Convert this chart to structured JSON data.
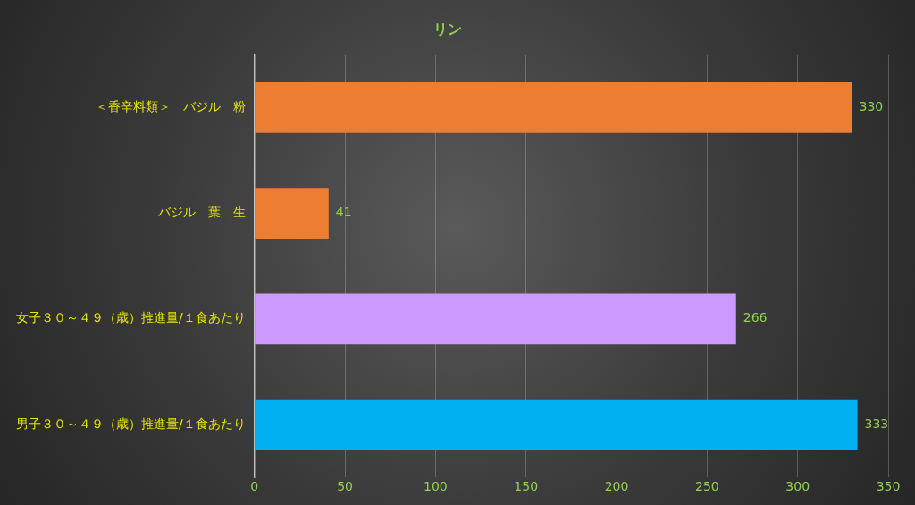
{
  "chart_data": {
    "type": "bar",
    "orientation": "horizontal",
    "title": "リン",
    "categories": [
      "＜香辛料類＞　バジル　粉",
      "バジル　葉　生",
      "女子３０～４９（歳）推進量/１食あたり",
      "男子３０～４９（歳）推進量/１食あたり"
    ],
    "values": [
      330,
      41,
      266,
      333
    ],
    "colors": [
      "#ed7d31",
      "#ed7d31",
      "#cc99ff",
      "#00b0f0"
    ],
    "xlim": [
      0,
      350
    ],
    "xticks": [
      0,
      50,
      100,
      150,
      200,
      250,
      300,
      350
    ],
    "grid": "x",
    "legend": false,
    "data_labels": true
  }
}
